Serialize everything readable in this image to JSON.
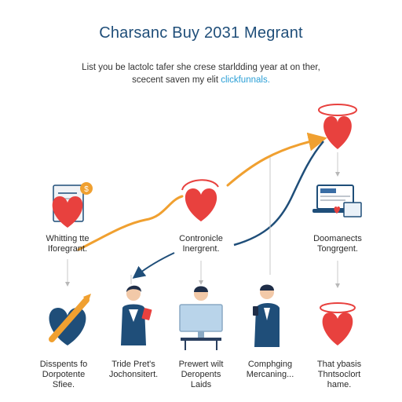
{
  "title": "Charsanc Buy 2031 Megrant",
  "subtitle": {
    "line1": "List you be lactolc tafer she crese starldding year at on ther,",
    "line2_prefix": "scecent saven my elit ",
    "line2_link": "clickfunnals."
  },
  "nodes": {
    "whitting": {
      "line1": "Whitting tte",
      "line2": "Iforegrant.",
      "icon": "document-heart-icon"
    },
    "contronicle": {
      "line1": "Contronicle",
      "line2": "Inergrent.",
      "icon": "heart-icon"
    },
    "doomanects": {
      "line1": "Doomanects",
      "line2": "Tongrgent.",
      "icon": "laptop-heart-icon"
    },
    "disspents": {
      "line1": "Disspents fo",
      "line2": "Dorpotente",
      "line3": "Sfiee.",
      "icon": "heart-arrow-icon"
    },
    "tride": {
      "line1": "Tride Pret's",
      "line2": "Jochonsitert.",
      "icon": "woman-phone-icon"
    },
    "prewert": {
      "line1": "Prewert wilt",
      "line2": "Deropents",
      "line3": "Laids",
      "icon": "man-computer-icon"
    },
    "comphging": {
      "line1": "Comphging",
      "line2": "Mercaning...",
      "icon": "man-phone-icon"
    },
    "that": {
      "line1": "That ybasis",
      "line2": "Thntsoclort",
      "line3": "hame.",
      "icon": "heart-halo-icon"
    }
  },
  "colors": {
    "heart": "#e8413e",
    "navy": "#1f4e79",
    "orange": "#f0a030",
    "gray": "#b8b8b8"
  }
}
